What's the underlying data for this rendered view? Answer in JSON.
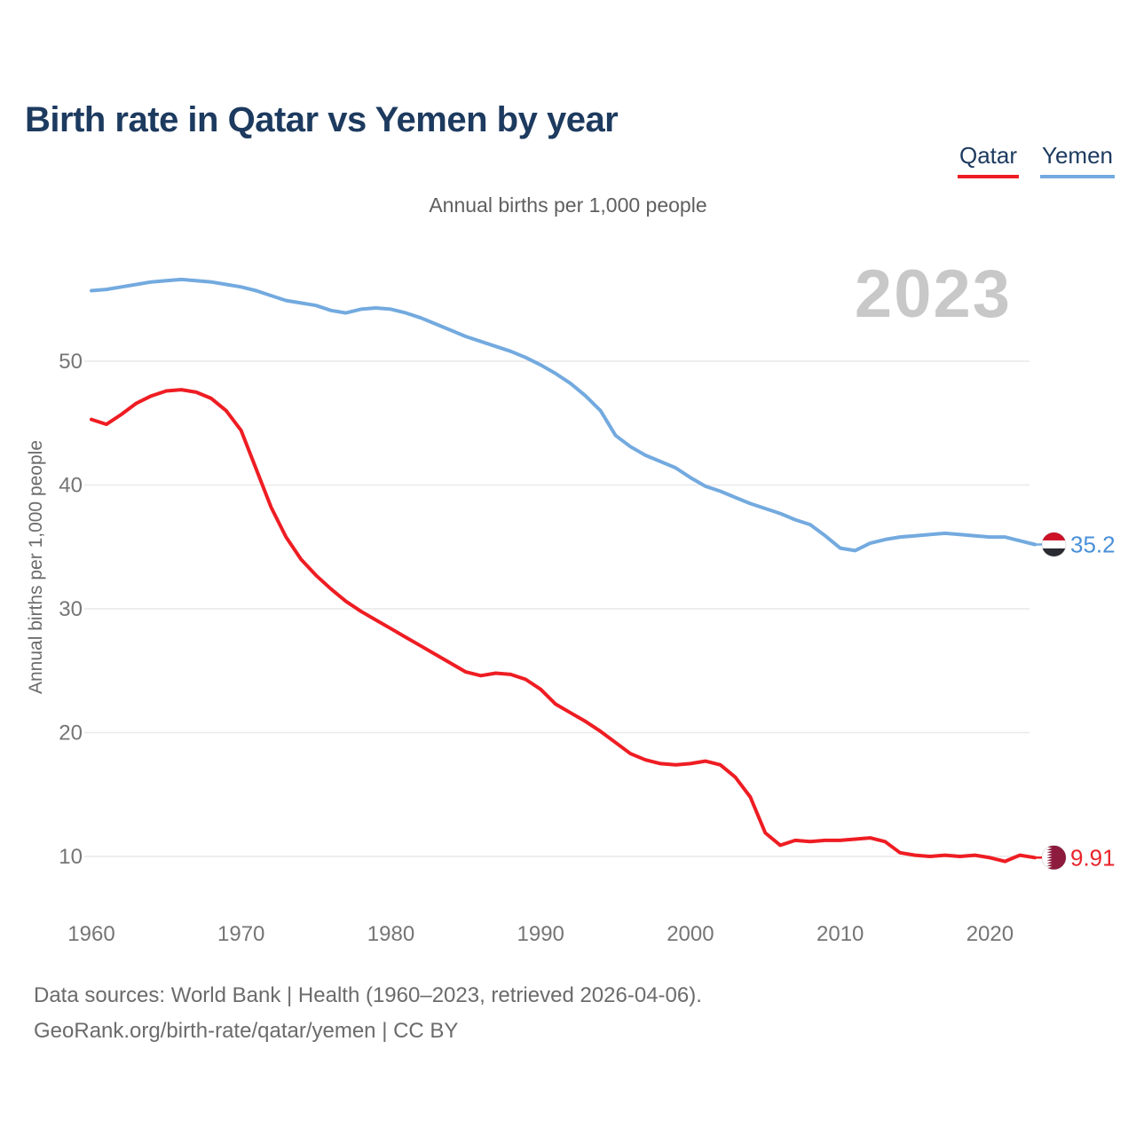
{
  "header": {
    "title": "Birth rate in Qatar vs Yemen by year"
  },
  "theme": {
    "background": "#ffffff",
    "title_color": "#1d3a5f",
    "tick_color": "#757575",
    "subtitle_color": "#5f5f5f",
    "muted_color": "#6b6b6b",
    "watermark_color": "#c8c8c8",
    "gridline_color": "#e9e9e9"
  },
  "chart_data": {
    "type": "line",
    "title": "Birth rate in Qatar vs Yemen by year",
    "subtitle": "Annual births per 1,000 people",
    "watermark": "2023",
    "x_axis": {
      "start_year": 1960,
      "end_year": 2023,
      "ticks": [
        1960,
        1970,
        1980,
        1990,
        2000,
        2010,
        2020
      ]
    },
    "y_axis": {
      "title": "Annual births per 1,000 people",
      "ticks": [
        10,
        20,
        30,
        40,
        50
      ],
      "range": [
        8,
        58
      ],
      "grid": true
    },
    "legend_position": "top-right",
    "series": [
      {
        "name": "Qatar",
        "color": "#ee1d23",
        "label_color": "#e8252b",
        "end_label": "9.91",
        "flag": {
          "type": "qatar",
          "colors": {
            "maroon": "#8d1b3d",
            "white": "#ffffff"
          }
        },
        "values": [
          45.3,
          44.9,
          45.7,
          46.6,
          47.2,
          47.6,
          47.7,
          47.5,
          47.0,
          46.0,
          44.4,
          41.3,
          38.2,
          35.8,
          34.0,
          32.7,
          31.6,
          30.6,
          29.8,
          29.1,
          28.4,
          27.7,
          27.0,
          26.3,
          25.6,
          24.9,
          24.6,
          24.8,
          24.7,
          24.3,
          23.5,
          22.3,
          21.6,
          20.9,
          20.1,
          19.2,
          18.3,
          17.8,
          17.5,
          17.4,
          17.5,
          17.7,
          17.4,
          16.4,
          14.8,
          11.9,
          10.9,
          11.3,
          11.2,
          11.3,
          11.3,
          11.4,
          11.5,
          11.2,
          10.3,
          10.1,
          10.0,
          10.1,
          10.0,
          10.1,
          9.9,
          9.6,
          10.1,
          9.91
        ]
      },
      {
        "name": "Yemen",
        "color": "#73aadf",
        "label_color": "#4a90d9",
        "end_label": "35.2",
        "flag": {
          "type": "yemen",
          "colors": {
            "red": "#ce1126",
            "white": "#ffffff",
            "black": "#2b2b33"
          }
        },
        "values": [
          55.7,
          55.8,
          56.0,
          56.2,
          56.4,
          56.5,
          56.6,
          56.5,
          56.4,
          56.2,
          56.0,
          55.7,
          55.3,
          54.9,
          54.7,
          54.5,
          54.1,
          53.9,
          54.2,
          54.3,
          54.2,
          53.9,
          53.5,
          53.0,
          52.5,
          52.0,
          51.6,
          51.2,
          50.8,
          50.3,
          49.7,
          49.0,
          48.2,
          47.2,
          46.0,
          44.0,
          43.1,
          42.4,
          41.9,
          41.4,
          40.6,
          39.9,
          39.5,
          39.0,
          38.5,
          38.1,
          37.7,
          37.2,
          36.8,
          35.9,
          34.9,
          34.7,
          35.3,
          35.6,
          35.8,
          35.9,
          36.0,
          36.1,
          36.0,
          35.9,
          35.8,
          35.8,
          35.5,
          35.2
        ]
      }
    ]
  },
  "footer": {
    "line1": "Data sources: World Bank | Health (1960–2023, retrieved 2026-04-06).",
    "line2": "GeoRank.org/birth-rate/qatar/yemen | CC BY"
  }
}
